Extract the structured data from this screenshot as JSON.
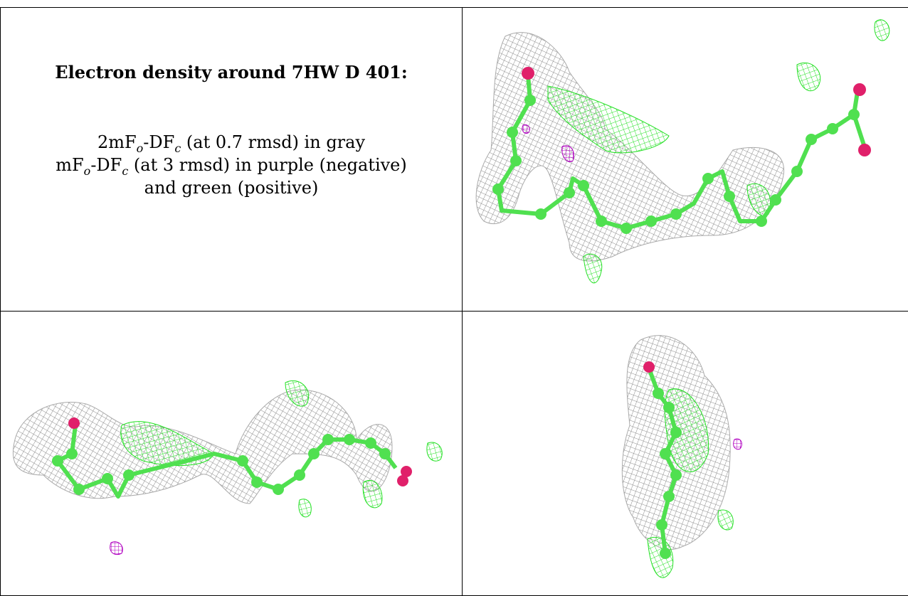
{
  "table": {
    "title": "Electron density around 7HW D 401:",
    "line1": {
      "pre": "2mF",
      "sub1": "o",
      "mid": "-DF",
      "sub2": "c",
      "post": " (at 0.7 rmsd) in gray"
    },
    "line2": {
      "pre": "mF",
      "sub1": "o",
      "mid": "-DF",
      "sub2": "c",
      "post": " (at 3 rmsd) in purple (negative)"
    },
    "line3": "and green (positive)"
  },
  "colors": {
    "mesh_gray": "#8a8a8a",
    "mesh_green": "#22e022",
    "mesh_purple": "#b000c0",
    "carbon": "#50e050",
    "oxygen": "#e0206a"
  },
  "panels": [
    {
      "name": "view-top-right",
      "depicts": "ligand-density-view-1"
    },
    {
      "name": "view-bottom-left",
      "depicts": "ligand-density-view-2"
    },
    {
      "name": "view-bottom-right",
      "depicts": "ligand-density-view-3"
    }
  ]
}
